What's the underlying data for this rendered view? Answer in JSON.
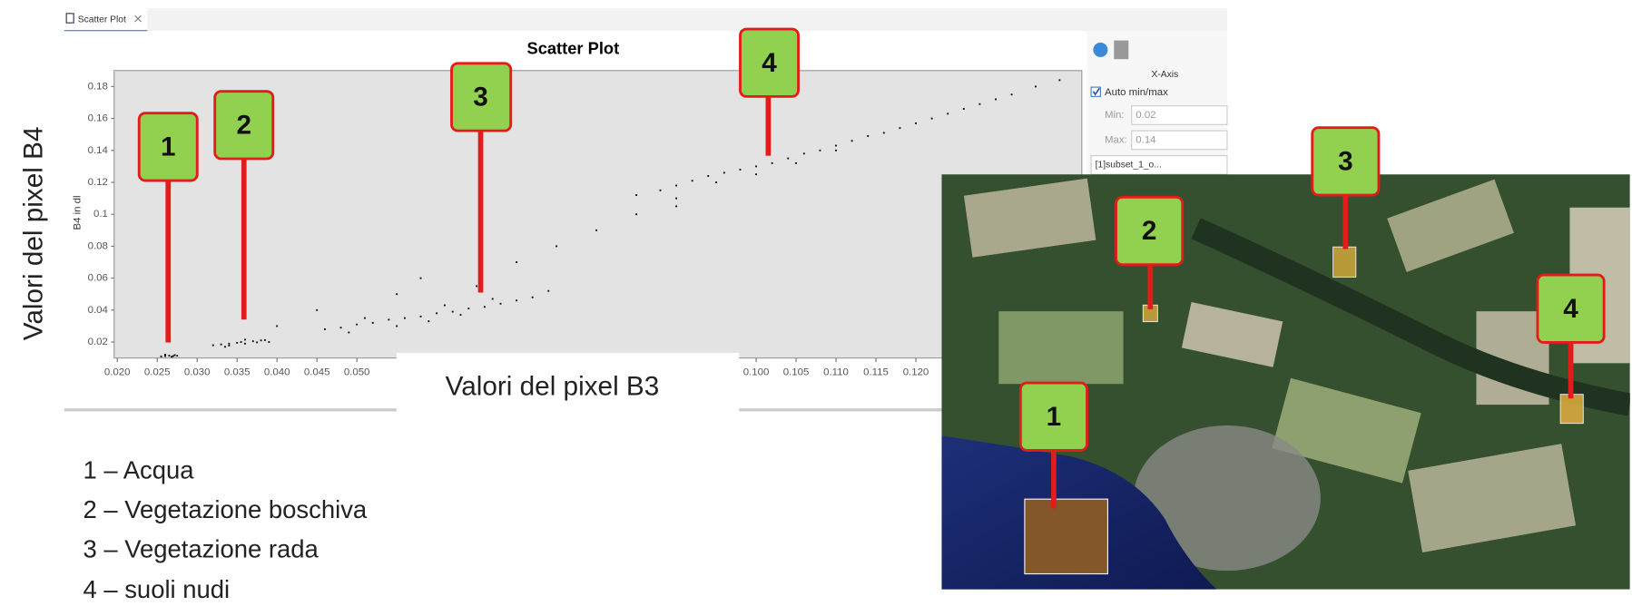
{
  "tab": {
    "title": "Scatter Plot"
  },
  "chart_data": {
    "type": "scatter",
    "title": "Scatter Plot",
    "y_label": "B4 in dl",
    "color": "#000000",
    "xlim": [
      0.02,
      0.14
    ],
    "ylim": [
      0.01,
      0.19
    ],
    "xticks": [
      {
        "value": 0.02,
        "label": "0.020"
      },
      {
        "value": 0.025,
        "label": "0.025"
      },
      {
        "value": 0.03,
        "label": "0.030"
      },
      {
        "value": 0.035,
        "label": "0.035"
      },
      {
        "value": 0.04,
        "label": "0.040"
      },
      {
        "value": 0.045,
        "label": "0.045"
      },
      {
        "value": 0.05,
        "label": "0.050"
      },
      {
        "value": 0.1,
        "label": "0.100"
      },
      {
        "value": 0.105,
        "label": "0.105"
      },
      {
        "value": 0.11,
        "label": "0.110"
      },
      {
        "value": 0.115,
        "label": "0.115"
      },
      {
        "value": 0.12,
        "label": "0.120"
      }
    ],
    "yticks": [
      0.02,
      0.04,
      0.06,
      0.08,
      0.1,
      0.12,
      0.14,
      0.16,
      0.18
    ],
    "x": [
      0.0255,
      0.026,
      0.0265,
      0.027,
      0.0272,
      0.0268,
      0.026,
      0.0275,
      0.032,
      0.033,
      0.034,
      0.035,
      0.0355,
      0.036,
      0.037,
      0.038,
      0.039,
      0.034,
      0.036,
      0.0375,
      0.0335,
      0.0385,
      0.046,
      0.048,
      0.05,
      0.052,
      0.054,
      0.056,
      0.058,
      0.06,
      0.062,
      0.064,
      0.066,
      0.068,
      0.07,
      0.072,
      0.055,
      0.059,
      0.063,
      0.049,
      0.051,
      0.061,
      0.067,
      0.074,
      0.045,
      0.04,
      0.058,
      0.07,
      0.075,
      0.08,
      0.085,
      0.09,
      0.065,
      0.055,
      0.085,
      0.088,
      0.09,
      0.092,
      0.094,
      0.096,
      0.098,
      0.1,
      0.102,
      0.104,
      0.106,
      0.108,
      0.11,
      0.112,
      0.114,
      0.116,
      0.118,
      0.12,
      0.122,
      0.124,
      0.126,
      0.128,
      0.13,
      0.132,
      0.135,
      0.138,
      0.095,
      0.1,
      0.105,
      0.11,
      0.09
    ],
    "values": [
      0.011,
      0.0112,
      0.0115,
      0.0112,
      0.0118,
      0.0108,
      0.0121,
      0.0114,
      0.018,
      0.0185,
      0.019,
      0.0195,
      0.02,
      0.019,
      0.0205,
      0.021,
      0.02,
      0.0178,
      0.0215,
      0.0198,
      0.017,
      0.0212,
      0.028,
      0.029,
      0.031,
      0.032,
      0.034,
      0.035,
      0.036,
      0.038,
      0.039,
      0.041,
      0.042,
      0.044,
      0.046,
      0.048,
      0.03,
      0.033,
      0.037,
      0.026,
      0.035,
      0.043,
      0.047,
      0.052,
      0.04,
      0.03,
      0.06,
      0.07,
      0.08,
      0.09,
      0.1,
      0.105,
      0.055,
      0.05,
      0.112,
      0.115,
      0.118,
      0.121,
      0.124,
      0.126,
      0.128,
      0.13,
      0.132,
      0.135,
      0.138,
      0.14,
      0.143,
      0.146,
      0.149,
      0.151,
      0.154,
      0.157,
      0.16,
      0.163,
      0.166,
      0.169,
      0.172,
      0.175,
      0.18,
      0.184,
      0.12,
      0.125,
      0.132,
      0.14,
      0.11
    ]
  },
  "settings_panel": {
    "axis": "X-Axis",
    "auto": "Auto min/max",
    "min_label": "Min:",
    "min_value": "0.02",
    "max_label": "Max:",
    "max_value": "0.14",
    "source": "[1]subset_1_o..."
  },
  "slide": {
    "y_caption": "Valori del pixel B4",
    "x_caption": "Valori del pixel B3",
    "legend": [
      "1 – Acqua",
      "2 – Vegetazione boschiva",
      "3 – Vegetazione rada",
      "4 – suoli nudi"
    ],
    "plot_callouts": [
      "1",
      "2",
      "3",
      "4"
    ],
    "image_callouts": [
      "1",
      "2",
      "3",
      "4"
    ]
  }
}
